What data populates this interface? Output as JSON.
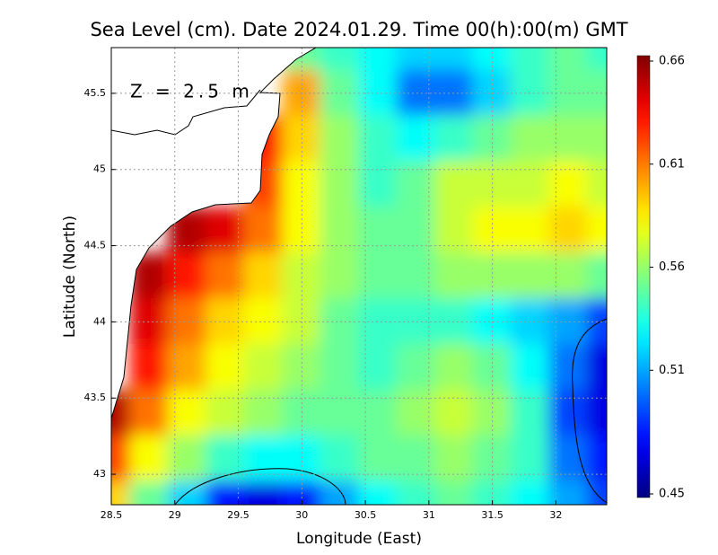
{
  "chart_data": {
    "type": "heatmap",
    "title": "Sea Level (cm). Date 2024.01.29. Time 00(h):00(m) GMT",
    "annotation": "Z = 2.5 m",
    "xlabel": "Longitude (East)",
    "ylabel": "Latitude (North)",
    "xlim": [
      28.5,
      32.4
    ],
    "ylim": [
      42.8,
      45.8
    ],
    "xticks": [
      28.5,
      29,
      29.5,
      30,
      30.5,
      31,
      31.5,
      32
    ],
    "yticks": [
      43,
      43.5,
      44,
      44.5,
      45,
      45.5
    ],
    "grid": true,
    "colormap": "jet",
    "clim": [
      0.45,
      0.66
    ],
    "cticks": [
      0.45,
      0.51,
      0.56,
      0.61,
      0.66
    ],
    "x": [
      28.5,
      28.8,
      29.1,
      29.4,
      29.7,
      30.0,
      30.3,
      30.6,
      30.9,
      31.2,
      31.5,
      31.8,
      32.1,
      32.4
    ],
    "y": [
      45.8,
      45.5,
      45.2,
      44.9,
      44.6,
      44.3,
      44.0,
      43.7,
      43.4,
      43.1,
      42.8
    ],
    "z": [
      [
        null,
        null,
        null,
        null,
        null,
        0.55,
        0.54,
        0.53,
        0.52,
        0.52,
        0.53,
        0.54,
        0.55,
        0.54
      ],
      [
        null,
        null,
        null,
        null,
        null,
        0.6,
        0.55,
        0.53,
        0.5,
        0.5,
        0.52,
        0.54,
        0.55,
        0.55
      ],
      [
        null,
        null,
        null,
        null,
        0.63,
        0.59,
        0.56,
        0.54,
        0.53,
        0.54,
        0.55,
        0.56,
        0.56,
        0.56
      ],
      [
        null,
        null,
        null,
        null,
        0.62,
        0.58,
        0.56,
        0.54,
        0.55,
        0.57,
        0.57,
        0.57,
        0.58,
        0.57
      ],
      [
        null,
        null,
        0.65,
        0.64,
        0.61,
        0.58,
        0.56,
        0.55,
        0.55,
        0.57,
        0.58,
        0.58,
        0.59,
        0.58
      ],
      [
        null,
        0.65,
        0.63,
        0.61,
        0.59,
        0.57,
        0.56,
        0.55,
        0.55,
        0.56,
        0.56,
        0.56,
        0.56,
        0.55
      ],
      [
        null,
        0.64,
        0.61,
        0.59,
        0.58,
        0.57,
        0.55,
        0.54,
        0.54,
        0.54,
        0.53,
        0.52,
        0.51,
        0.49
      ],
      [
        null,
        0.63,
        0.6,
        0.58,
        0.57,
        0.56,
        0.55,
        0.54,
        0.55,
        0.56,
        0.55,
        0.53,
        0.5,
        0.47
      ],
      [
        0.65,
        0.61,
        0.58,
        0.57,
        0.56,
        0.55,
        0.55,
        0.55,
        0.56,
        0.57,
        0.56,
        0.54,
        0.49,
        0.47
      ],
      [
        0.62,
        0.58,
        0.56,
        0.54,
        0.53,
        0.53,
        0.54,
        0.55,
        0.55,
        0.56,
        0.55,
        0.54,
        0.5,
        0.48
      ],
      [
        0.59,
        0.55,
        0.52,
        0.48,
        0.47,
        0.48,
        0.51,
        0.53,
        0.54,
        0.55,
        0.54,
        0.53,
        0.51,
        0.49
      ]
    ]
  }
}
